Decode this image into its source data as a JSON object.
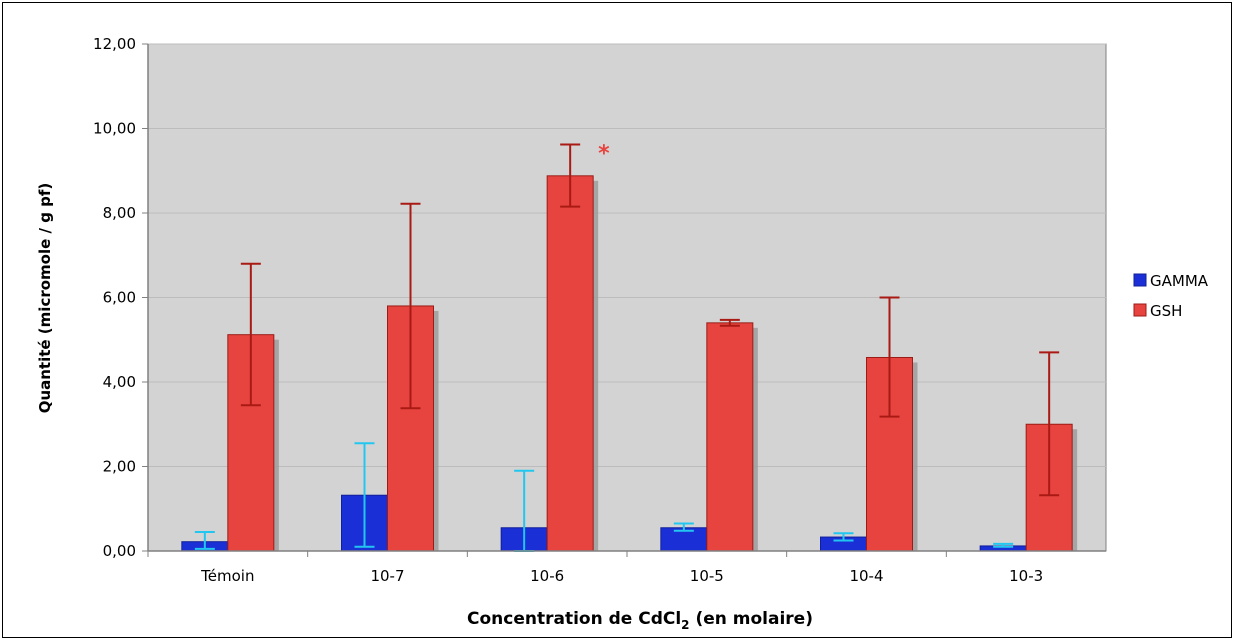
{
  "chart_data": {
    "type": "bar",
    "categories": [
      "Témoin",
      "10-7",
      "10-6",
      "10-5",
      "10-4",
      "10-3"
    ],
    "series": [
      {
        "name": "GAMMA",
        "color": "#1a2fd6",
        "error_color": "#22c7f0",
        "values": [
          0.22,
          1.32,
          0.55,
          0.55,
          0.33,
          0.12
        ],
        "error_high": [
          0.45,
          2.55,
          1.9,
          0.65,
          0.42,
          0.17
        ],
        "error_low": [
          0.05,
          0.1,
          0.0,
          0.48,
          0.25,
          0.1
        ]
      },
      {
        "name": "GSH",
        "color": "#e8443f",
        "error_color": "#aa1a14",
        "values": [
          5.12,
          5.8,
          8.88,
          5.4,
          4.58,
          3.0
        ],
        "error_high": [
          6.8,
          8.22,
          9.62,
          5.47,
          6.0,
          4.7
        ],
        "error_low": [
          3.45,
          3.38,
          8.15,
          5.33,
          3.18,
          1.32
        ]
      }
    ],
    "ylim": [
      0,
      12
    ],
    "yticks": [
      "0,00",
      "2,00",
      "4,00",
      "6,00",
      "8,00",
      "10,00",
      "12,00"
    ],
    "ylabel": "Quantité (micromole / g pf)",
    "xlabel_main": "Concentration de CdCl",
    "xlabel_sub": "2",
    "xlabel_tail": " (en molaire)",
    "annotation": {
      "text": "*",
      "category_index": 2,
      "series_index": 1,
      "color": "#e8443f"
    },
    "plot_background": "#d3d3d3",
    "legend_position": "right"
  }
}
